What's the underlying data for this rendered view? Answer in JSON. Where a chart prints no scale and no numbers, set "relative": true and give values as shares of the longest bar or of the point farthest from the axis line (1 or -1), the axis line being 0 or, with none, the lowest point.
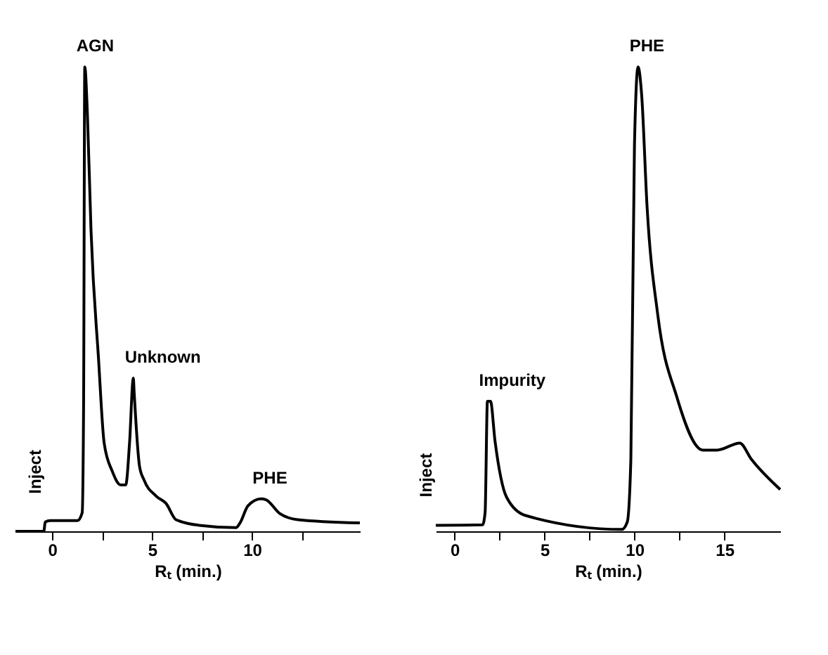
{
  "chart_data": [
    {
      "type": "line",
      "relative": true,
      "xlabel": "Rₜ (min.)",
      "xlim": [
        -1.84,
        15.4
      ],
      "xticks": [
        0,
        {
          "value": 2.5,
          "label": null
        },
        5,
        {
          "value": 7.5,
          "label": null
        },
        10,
        {
          "value": 12.5,
          "label": null
        }
      ],
      "x": [
        -1.84,
        -0.42,
        -0.35,
        -0.1,
        1.26,
        1.5,
        1.57,
        1.63,
        1.76,
        1.94,
        2.32,
        2.6,
        3.0,
        3.43,
        3.68,
        3.87,
        4.06,
        4.1,
        4.37,
        4.6,
        5.2,
        5.7,
        6.2,
        7.35,
        9.2,
        9.4,
        9.8,
        10.45,
        10.7,
        11.4,
        12.3,
        15.4
      ],
      "series": [
        {
          "color": "#000000",
          "values": [
            0,
            0,
            0.02,
            0.023,
            0.023,
            0.04,
            0.27,
            1.0,
            0.9,
            0.65,
            0.37,
            0.19,
            0.13,
            0.1,
            0.1,
            0.19,
            0.33,
            0.3,
            0.14,
            0.11,
            0.076,
            0.06,
            0.025,
            0.013,
            0.008,
            0.018,
            0.055,
            0.07,
            0.068,
            0.038,
            0.025,
            0.018
          ]
        }
      ],
      "annotations": [
        {
          "text": "Inject",
          "x": -0.35,
          "y": 0.02
        },
        {
          "text": "AGN",
          "x": 1.63,
          "y": 1.0
        },
        {
          "text": "Unknown",
          "x": 4.06,
          "y": 0.33
        },
        {
          "text": "PHE",
          "x": 10.45,
          "y": 0.07
        }
      ]
    },
    {
      "type": "line",
      "relative": true,
      "xlabel": "Rₜ (min.)",
      "xlim": [
        -1.04,
        18.1
      ],
      "xticks": [
        0,
        {
          "value": 2.5,
          "label": null
        },
        5,
        {
          "value": 7.5,
          "label": null
        },
        10,
        {
          "value": 12.5,
          "label": null
        },
        15
      ],
      "x": [
        -1.04,
        1.56,
        1.7,
        1.83,
        2.0,
        2.25,
        2.9,
        3.95,
        9.3,
        9.6,
        9.8,
        10.0,
        10.2,
        10.4,
        10.7,
        11.3,
        12.35,
        13.8,
        14.6,
        15.85,
        16.5,
        18.1
      ],
      "series": [
        {
          "color": "#000000",
          "values": [
            0.013,
            0.014,
            0.04,
            0.28,
            0.28,
            0.195,
            0.073,
            0.034,
            0.004,
            0.02,
            0.155,
            0.83,
            1.0,
            0.94,
            0.7,
            0.465,
            0.29,
            0.175,
            0.175,
            0.19,
            0.155,
            0.09
          ]
        }
      ],
      "annotations": [
        {
          "text": "Inject",
          "x": -1.04,
          "y": 0.013
        },
        {
          "text": "Impurity",
          "x": 1.83,
          "y": 0.28
        },
        {
          "text": "PHE",
          "x": 10.2,
          "y": 1.0
        }
      ]
    }
  ]
}
